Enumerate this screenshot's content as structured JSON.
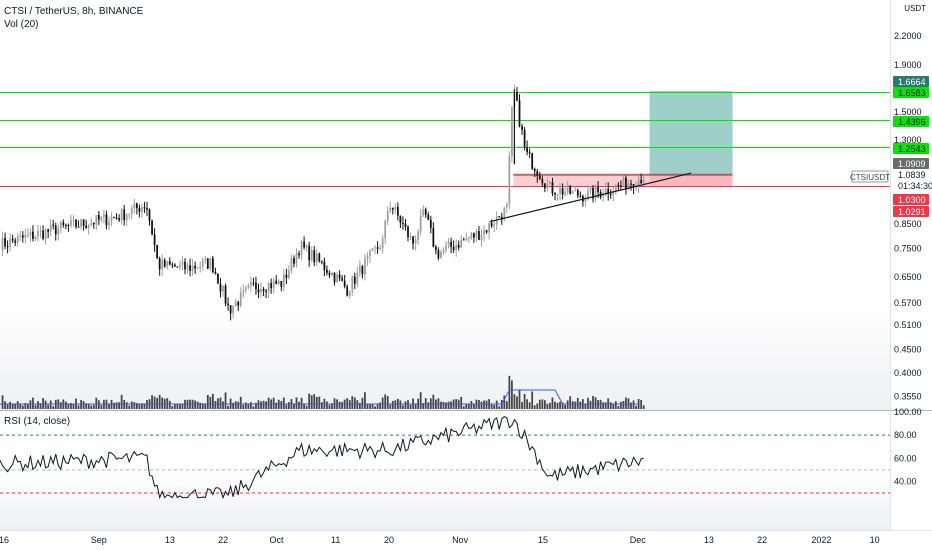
{
  "header": {
    "symbol_line": "CTSI / TetherUS, 8h, BINANCE",
    "volume_line": "Vol (20)",
    "currency_line1": "USDT"
  },
  "rsi": {
    "label": "RSI (14, close)",
    "ticks": [
      "100.00",
      "80.00",
      "60.00",
      "40.00"
    ],
    "upper_band": 80,
    "lower_band": 30,
    "mid_band": 50
  },
  "colors": {
    "up": "#000000",
    "down": "#000000",
    "green_level": "#00e600",
    "red_level": "#f23645",
    "target_zone": "#4fa79b",
    "stop_zone": "#f7a5ac",
    "volume_ma": "#2962ff",
    "ticker_tag": "#9598a1"
  },
  "chart_data": {
    "type": "candlestick",
    "price_axis_ticks": [
      "2.2000",
      "1.9000",
      "1.5000",
      "1.3000",
      "0.8500",
      "0.7500",
      "0.6500",
      "0.5700",
      "0.5100",
      "0.4500",
      "0.4000",
      "0.3550"
    ],
    "time_axis_ticks": [
      "16",
      "Sep",
      "13",
      "22",
      "Oct",
      "11",
      "20",
      "Nov",
      "15",
      "Dec",
      "13",
      "22",
      "2022",
      "10"
    ],
    "horizontal_levels": [
      {
        "value": "1.6583",
        "color": "green"
      },
      {
        "value": "1.4396",
        "color": "green"
      },
      {
        "value": "1.2543",
        "color": "green"
      },
      {
        "value": "1.0300",
        "color": "red"
      }
    ],
    "price_labels": [
      {
        "text": "1.6664",
        "kind": "target"
      },
      {
        "text": "1.6583",
        "kind": "level"
      },
      {
        "text": "1.4396",
        "kind": "level"
      },
      {
        "text": "1.2543",
        "kind": "level"
      },
      {
        "text": "1.0909",
        "kind": "entry"
      },
      {
        "text": "CTSIUSDT",
        "kind": "ticker"
      },
      {
        "text": "1.0839",
        "kind": "last"
      },
      {
        "text": "01:34:30",
        "kind": "countdown"
      },
      {
        "text": "1.0300",
        "kind": "stop"
      },
      {
        "text": "1.0291",
        "kind": "stop2"
      }
    ],
    "trendline": {
      "from_date": "Nov 06",
      "to_date": "Dec 10",
      "start_price": 0.86,
      "end_price": 1.1
    },
    "position": {
      "entry": 1.0909,
      "target": 1.6664,
      "stop": 1.0291,
      "from_date": "Dec 03",
      "to_date": "Dec 17"
    },
    "candles_summary": [
      {
        "date": "Aug 16",
        "price": 0.77
      },
      {
        "date": "Aug 25",
        "price": 0.83
      },
      {
        "date": "Sep 04",
        "price": 0.88
      },
      {
        "date": "Sep 09",
        "price": 0.94
      },
      {
        "date": "Sep 11",
        "price": 0.69
      },
      {
        "date": "Sep 16",
        "price": 0.68
      },
      {
        "date": "Sep 20",
        "price": 0.7
      },
      {
        "date": "Sep 23",
        "price": 0.55
      },
      {
        "date": "Sep 27",
        "price": 0.62
      },
      {
        "date": "Oct 02",
        "price": 0.63
      },
      {
        "date": "Oct 05",
        "price": 0.76
      },
      {
        "date": "Oct 11",
        "price": 0.65
      },
      {
        "date": "Oct 13",
        "price": 0.61
      },
      {
        "date": "Oct 19",
        "price": 0.78
      },
      {
        "date": "Oct 20",
        "price": 0.95
      },
      {
        "date": "Oct 24",
        "price": 0.77
      },
      {
        "date": "Oct 26",
        "price": 0.9
      },
      {
        "date": "Oct 28",
        "price": 0.73
      },
      {
        "date": "Nov 05",
        "price": 0.82
      },
      {
        "date": "Nov 09",
        "price": 0.92
      },
      {
        "date": "Nov 10",
        "price": 1.68
      },
      {
        "date": "Nov 12",
        "price": 1.22
      },
      {
        "date": "Nov 16",
        "price": 1.02
      },
      {
        "date": "Nov 22",
        "price": 0.98
      },
      {
        "date": "Nov 27",
        "price": 1.02
      },
      {
        "date": "Dec 02",
        "price": 1.08
      }
    ],
    "rsi_summary": [
      {
        "date": "Aug 16",
        "value": 55
      },
      {
        "date": "Sep 09",
        "value": 60
      },
      {
        "date": "Sep 11",
        "value": 28
      },
      {
        "date": "Sep 23",
        "value": 28
      },
      {
        "date": "Oct 05",
        "value": 67
      },
      {
        "date": "Oct 20",
        "value": 67
      },
      {
        "date": "Nov 10",
        "value": 94
      },
      {
        "date": "Nov 14",
        "value": 62
      },
      {
        "date": "Nov 16",
        "value": 44
      },
      {
        "date": "Dec 02",
        "value": 58
      }
    ]
  }
}
